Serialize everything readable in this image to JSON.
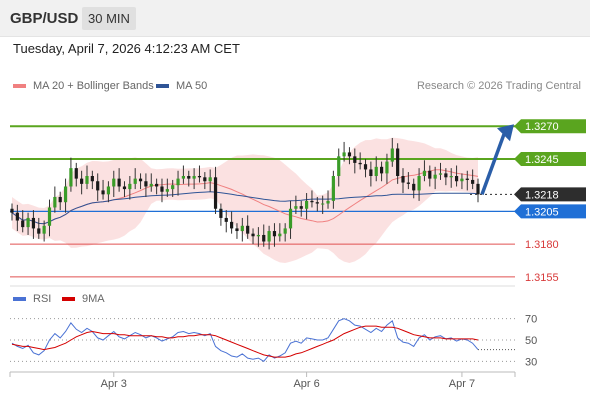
{
  "header": {
    "pair": "GBP/USD",
    "timeframe": "30 MIN",
    "datetime": "Tuesday, April 7, 2026 4:12:23 AM CET"
  },
  "legend": {
    "ma20_label": "MA 20 + Bollinger Bands",
    "ma20_color": "#f08080",
    "ma50_label": "MA 50",
    "ma50_color": "#2f5496",
    "credit": "Research © 2026 Trading Central"
  },
  "indicator_legend": {
    "rsi_label": "RSI",
    "rsi_color": "#4a72d4",
    "ma9_label": "9MA",
    "ma9_color": "#d40000"
  },
  "price_levels": [
    {
      "label": "1.3270",
      "value": 1.327,
      "kind": "resistance",
      "color": "#5aa51f"
    },
    {
      "label": "1.3245",
      "value": 1.3245,
      "kind": "resistance",
      "color": "#5aa51f"
    },
    {
      "label": "1.3218",
      "value": 1.3218,
      "kind": "current",
      "color": "#2d2d2d"
    },
    {
      "label": "1.3205",
      "value": 1.3205,
      "kind": "pivot",
      "color": "#1f6fd6"
    },
    {
      "label": "1.3180",
      "value": 1.318,
      "kind": "support",
      "color": "#e05050"
    },
    {
      "label": "1.3155",
      "value": 1.3155,
      "kind": "support",
      "color": "#e05050"
    }
  ],
  "rsi_ticks": [
    "70",
    "50",
    "30"
  ],
  "x_labels": [
    "Apr 3",
    "Apr 6",
    "Apr 7"
  ],
  "chart_data": {
    "type": "candlestick",
    "price_range": [
      1.3145,
      1.329
    ],
    "rsi_range": [
      20,
      80
    ],
    "close": [
      1.3204,
      1.3198,
      1.3193,
      1.32,
      1.3192,
      1.3188,
      1.3194,
      1.3208,
      1.3216,
      1.3212,
      1.3224,
      1.3238,
      1.323,
      1.3226,
      1.3232,
      1.3228,
      1.3221,
      1.3218,
      1.3224,
      1.323,
      1.3224,
      1.3222,
      1.3226,
      1.323,
      1.3228,
      1.3224,
      1.3226,
      1.3224,
      1.322,
      1.3222,
      1.3225,
      1.323,
      1.3232,
      1.323,
      1.3232,
      1.3231,
      1.3228,
      1.3231,
      1.3207,
      1.32,
      1.3197,
      1.3192,
      1.319,
      1.3194,
      1.3188,
      1.3186,
      1.3187,
      1.3182,
      1.319,
      1.3186,
      1.3188,
      1.3192,
      1.3207,
      1.3209,
      1.3207,
      1.3213,
      1.3212,
      1.3211,
      1.3211,
      1.3213,
      1.3232,
      1.3247,
      1.325,
      1.3247,
      1.3242,
      1.3241,
      1.3237,
      1.3232,
      1.3239,
      1.3234,
      1.3243,
      1.3253,
      1.3232,
      1.3227,
      1.3226,
      1.3221,
      1.3232,
      1.3236,
      1.323,
      1.3233,
      1.3234,
      1.3231,
      1.3232,
      1.3228,
      1.323,
      1.3229,
      1.3226,
      1.3218
    ],
    "rsi": [
      47,
      44,
      42,
      45,
      38,
      36,
      40,
      50,
      56,
      52,
      58,
      66,
      60,
      57,
      61,
      58,
      52,
      50,
      54,
      58,
      53,
      51,
      54,
      57,
      55,
      52,
      54,
      52,
      49,
      51,
      53,
      57,
      58,
      56,
      57,
      56,
      54,
      56,
      44,
      40,
      38,
      35,
      34,
      37,
      33,
      32,
      33,
      30,
      36,
      33,
      35,
      38,
      47,
      49,
      47,
      52,
      51,
      50,
      50,
      52,
      60,
      68,
      70,
      68,
      64,
      63,
      60,
      57,
      61,
      58,
      64,
      68,
      52,
      48,
      47,
      44,
      52,
      55,
      50,
      53,
      54,
      51,
      52,
      49,
      51,
      50,
      47,
      41
    ],
    "rsi_ma9": [
      46,
      45,
      44,
      44,
      43,
      42,
      41,
      42,
      43,
      45,
      47,
      50,
      53,
      55,
      57,
      58,
      57,
      56,
      56,
      56,
      55,
      55,
      54,
      54,
      54,
      54,
      54,
      53,
      53,
      52,
      52,
      53,
      53,
      54,
      54,
      55,
      55,
      55,
      54,
      52,
      50,
      48,
      46,
      44,
      42,
      40,
      38,
      36,
      35,
      34,
      34,
      34,
      35,
      37,
      38,
      40,
      42,
      44,
      46,
      48,
      50,
      53,
      56,
      58,
      60,
      62,
      63,
      63,
      63,
      62,
      62,
      62,
      61,
      59,
      57,
      55,
      54,
      53,
      52,
      52,
      52,
      51,
      51,
      51,
      51,
      51,
      51,
      50
    ],
    "forecast_arrow_target": 1.327
  }
}
